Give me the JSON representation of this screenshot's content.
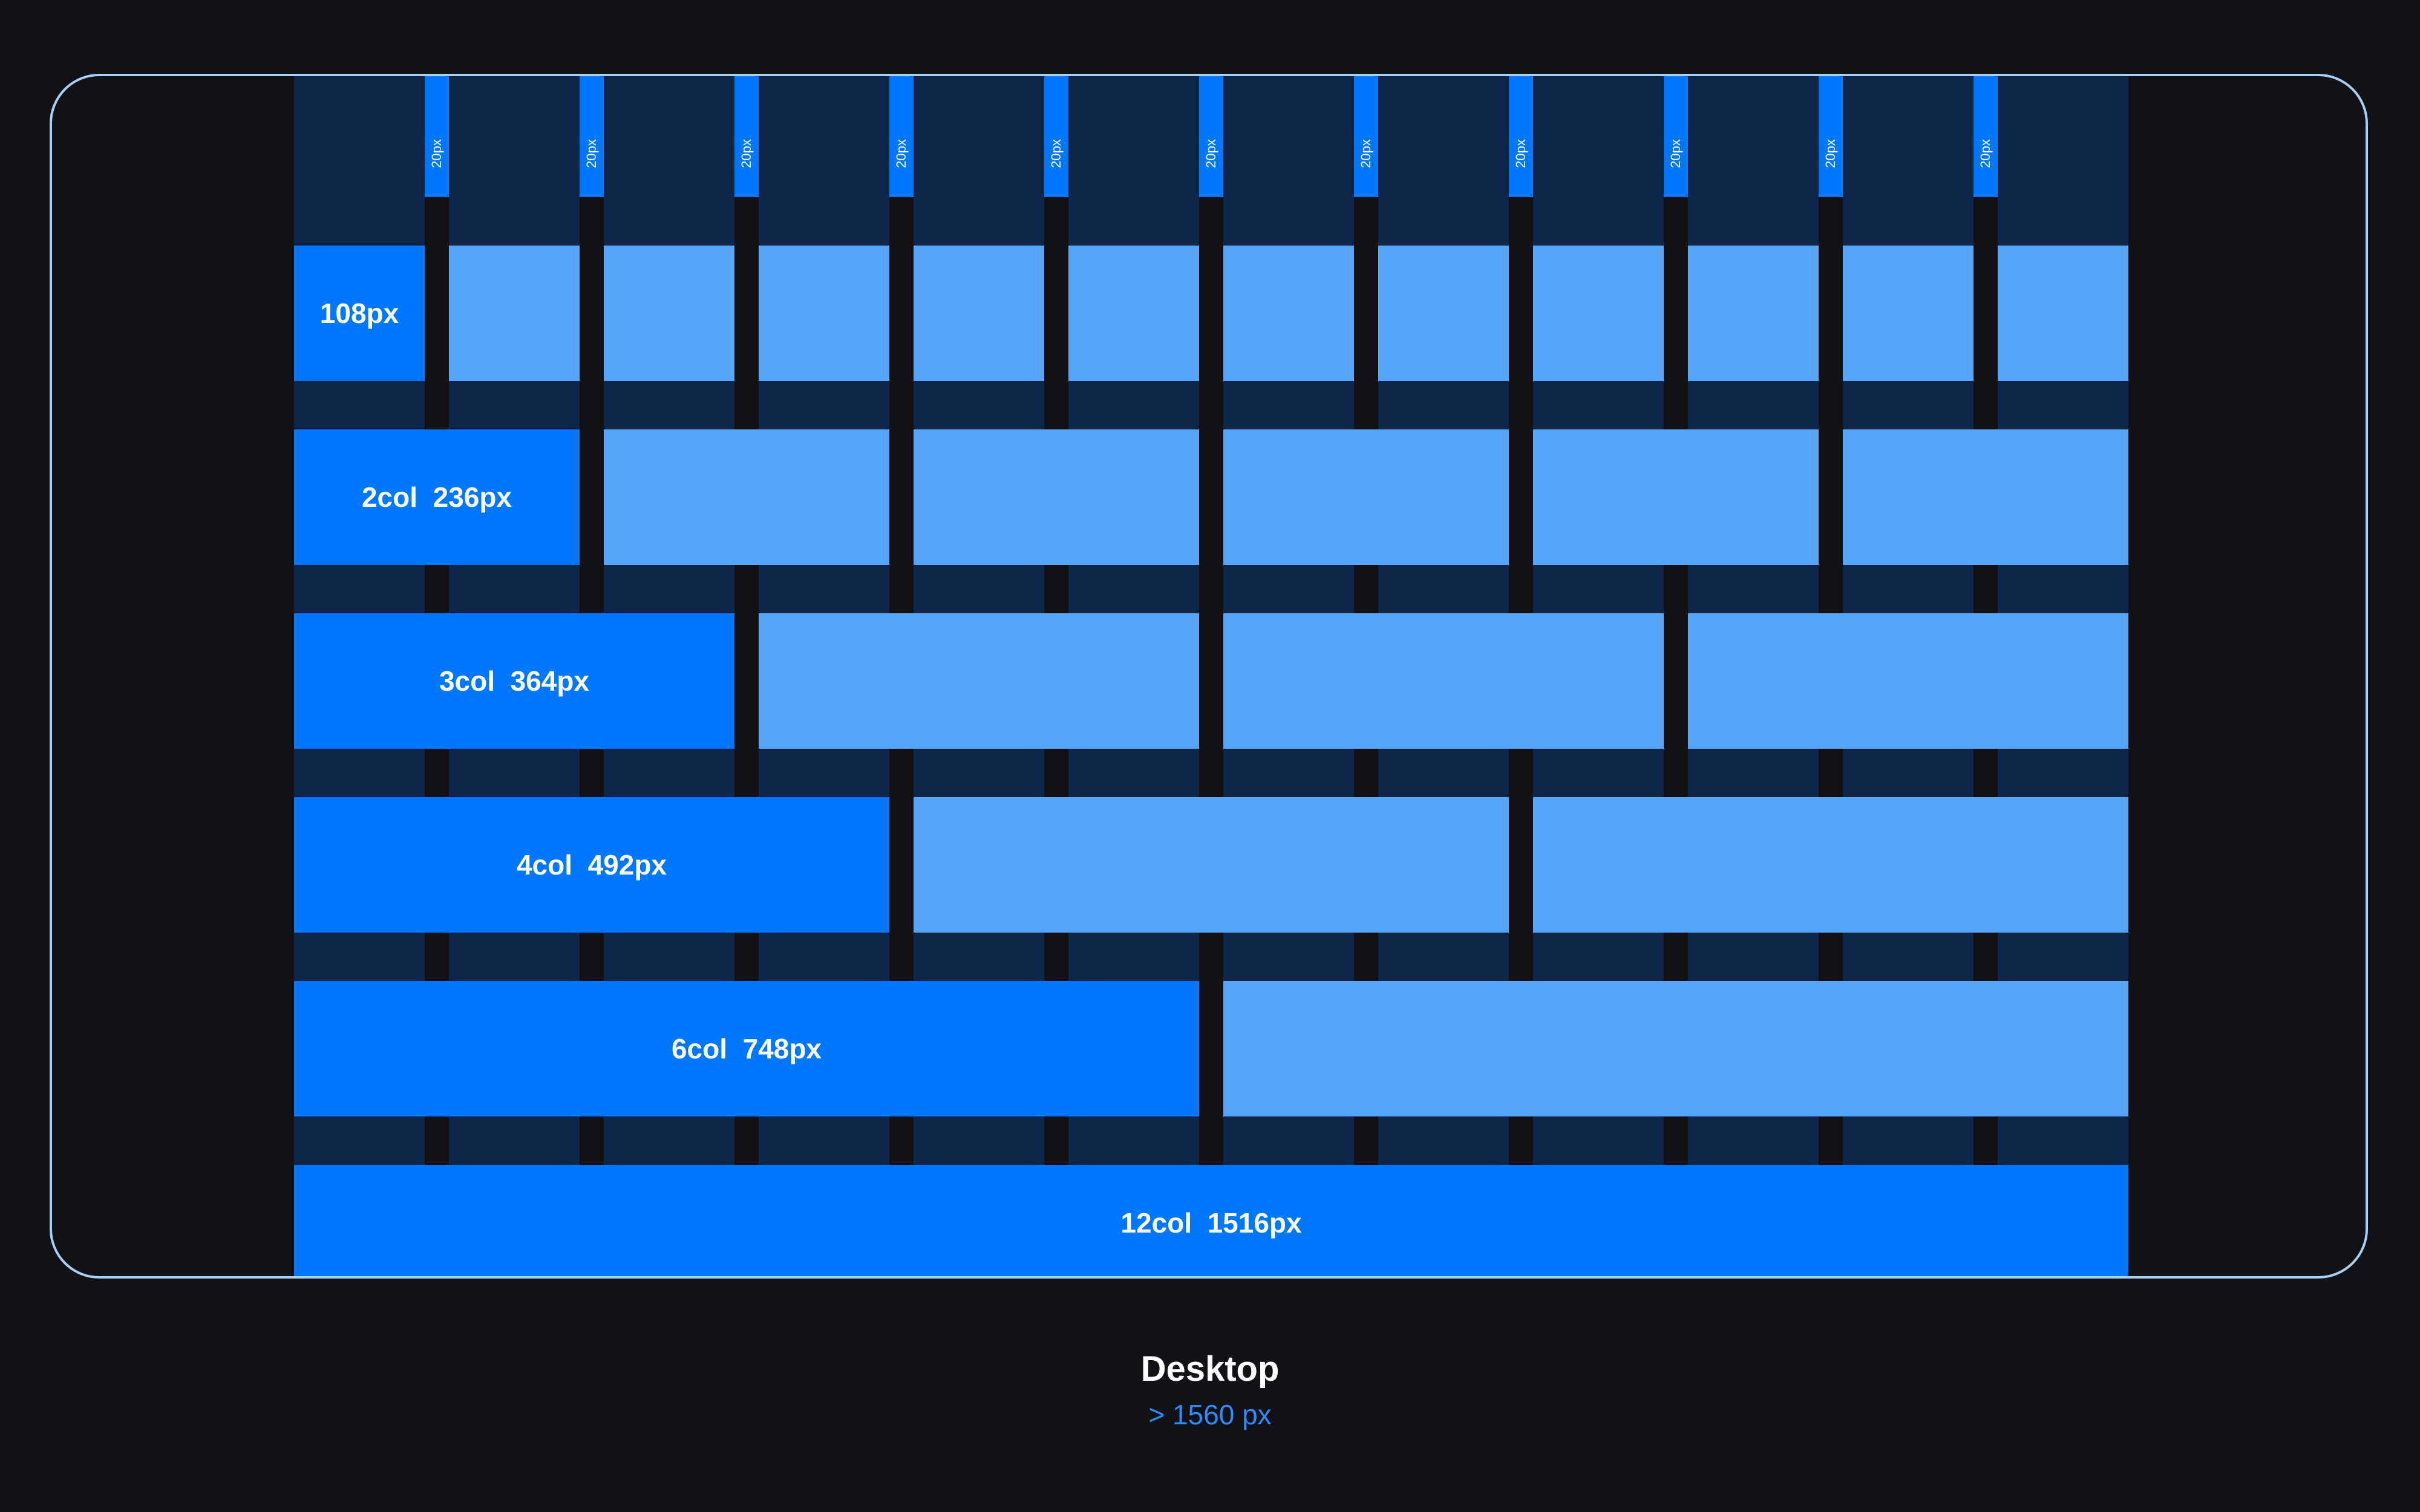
{
  "grid": {
    "gutter_label": "20px",
    "gutter_count": 11,
    "columns": 12
  },
  "rows": [
    {
      "label": "108px",
      "span": 1
    },
    {
      "label": "2col  236px",
      "span": 2
    },
    {
      "label": "3col  364px",
      "span": 3
    },
    {
      "label": "4col  492px",
      "span": 4
    },
    {
      "label": "6col  748px",
      "span": 6
    },
    {
      "label": "12col  1516px",
      "span": 12
    }
  ],
  "caption": {
    "title": "Desktop",
    "subtitle": "> 1560 px"
  },
  "colors": {
    "background": "#111116",
    "column": "#0f2548",
    "primary": "#0077ff",
    "secondary": "#55a5ff",
    "frame_border": "#a9d0f2",
    "subtitle": "#2c8cff"
  }
}
